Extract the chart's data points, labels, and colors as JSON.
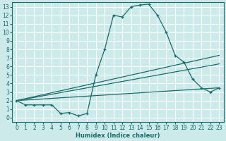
{
  "xlabel": "Humidex (Indice chaleur)",
  "bg_color": "#cceaea",
  "grid_color": "#ffffff",
  "line_color": "#1a6b6b",
  "xlim": [
    -0.5,
    23.5
  ],
  "ylim": [
    -0.5,
    13.5
  ],
  "xticks": [
    0,
    1,
    2,
    3,
    4,
    5,
    6,
    7,
    8,
    9,
    10,
    11,
    12,
    13,
    14,
    15,
    16,
    17,
    18,
    19,
    20,
    21,
    22,
    23
  ],
  "yticks": [
    0,
    1,
    2,
    3,
    4,
    5,
    6,
    7,
    8,
    9,
    10,
    11,
    12,
    13
  ],
  "line1_x": [
    0,
    1,
    2,
    3,
    4,
    5,
    6,
    7,
    8,
    9,
    10,
    11,
    12,
    13,
    14,
    15,
    16,
    17,
    18,
    19,
    20,
    21,
    22,
    23
  ],
  "line1_y": [
    2,
    1.5,
    1.5,
    1.5,
    1.5,
    0.5,
    0.6,
    0.2,
    0.5,
    5.0,
    8.0,
    12.0,
    11.8,
    13.0,
    13.2,
    13.3,
    12.0,
    10.0,
    7.3,
    6.5,
    4.5,
    3.5,
    3.0,
    3.5
  ],
  "line2_x": [
    0,
    23
  ],
  "line2_y": [
    2.0,
    7.3
  ],
  "line3_x": [
    0,
    23
  ],
  "line3_y": [
    2.0,
    3.5
  ],
  "line4_x": [
    0,
    23
  ],
  "line4_y": [
    2.0,
    6.3
  ],
  "xlabel_fontsize": 6.0,
  "tick_fontsize": 5.5
}
